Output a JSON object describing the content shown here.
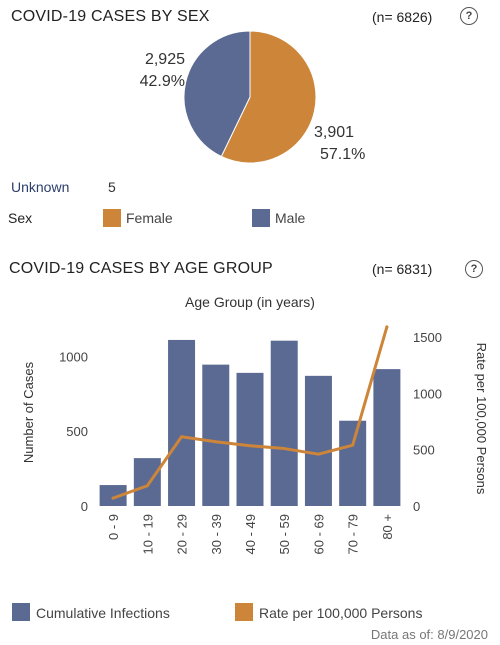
{
  "colors": {
    "male": "#5b6a93",
    "female": "#cc8539"
  },
  "sex_section": {
    "title": "COVID-19 CASES BY SEX",
    "n_label": "(n= 6826)",
    "help_glyph": "?",
    "unknown_label": "Unknown",
    "unknown_value": "5",
    "legend_title": "Sex",
    "legend": [
      {
        "label": "Female",
        "color": "#cc8539"
      },
      {
        "label": "Male",
        "color": "#5b6a93"
      }
    ]
  },
  "age_section": {
    "title": "COVID-19 CASES BY AGE GROUP",
    "n_label": "(n= 6831)",
    "help_glyph": "?",
    "legend": [
      {
        "label": "Cumulative Infections",
        "color": "#5b6a93"
      },
      {
        "label": "Rate per 100,000 Persons",
        "color": "#cc8539"
      }
    ]
  },
  "footer": {
    "data_as_of": "Data as of:  8/9/2020"
  },
  "chart_data": [
    {
      "type": "pie",
      "slices": [
        {
          "label": "Female",
          "value": 3901,
          "value_text": "3,901",
          "pct_text": "57.1%",
          "color": "#cc8539"
        },
        {
          "label": "Male",
          "value": 2925,
          "value_text": "2,925",
          "pct_text": "42.9%",
          "color": "#5b6a93"
        }
      ]
    },
    {
      "type": "bar",
      "title": "Age Group (in years)",
      "ylabel": "Number of Cases",
      "y2label": "Rate per 100,000 Persons",
      "categories": [
        "0 - 9",
        "10 - 19",
        "20 - 29",
        "30 - 39",
        "40 - 49",
        "50 - 59",
        "60 - 69",
        "70 - 79",
        "80 +"
      ],
      "ylim": [
        0,
        1250
      ],
      "yticks": [
        0,
        500,
        1000
      ],
      "y2lim": [
        0,
        1660
      ],
      "y2ticks": [
        0,
        500,
        1000,
        1500
      ],
      "series": [
        {
          "name": "Cumulative Infections",
          "type": "bar",
          "axis": "left",
          "color": "#5b6a93",
          "values": [
            140,
            320,
            1110,
            945,
            890,
            1105,
            870,
            570,
            915
          ]
        },
        {
          "name": "Rate per 100,000 Persons",
          "type": "line",
          "axis": "right",
          "color": "#cc8539",
          "values": [
            70,
            180,
            615,
            570,
            535,
            510,
            460,
            540,
            1590
          ]
        }
      ],
      "grid": false
    }
  ]
}
